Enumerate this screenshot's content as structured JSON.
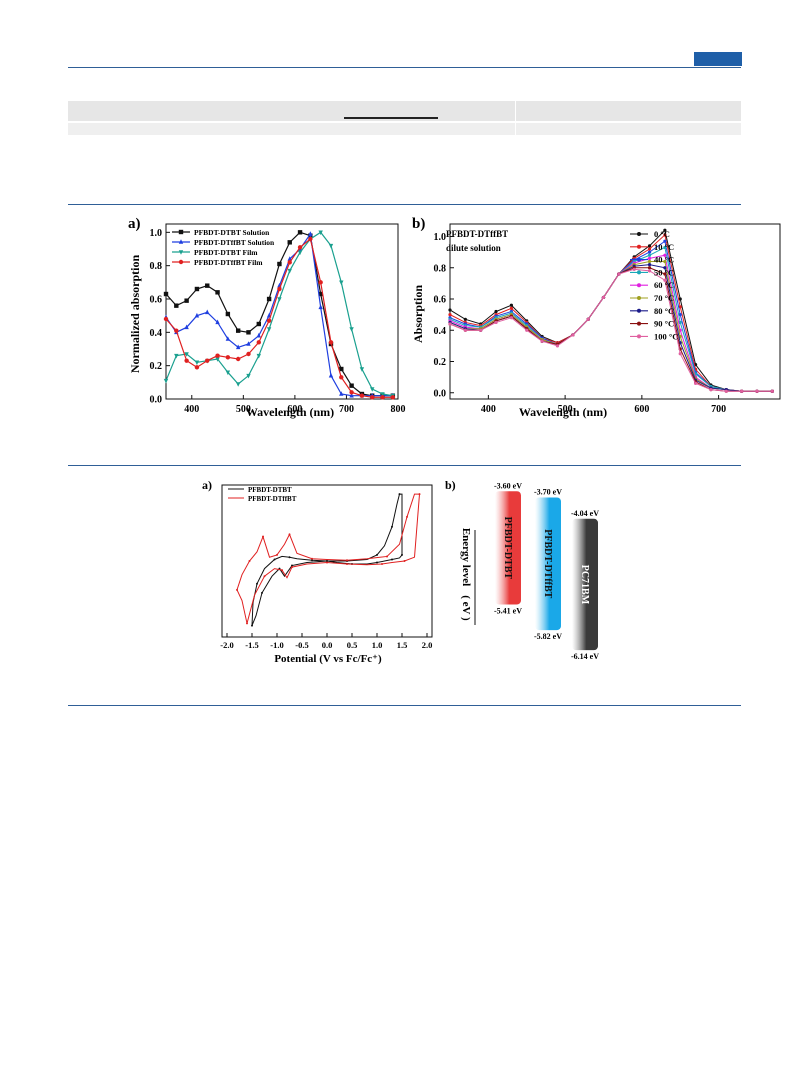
{
  "page": {
    "corner_tab_color": "#1f5fa8",
    "rule_color": "#2f5f97"
  },
  "figure_a": {
    "panel_a": {
      "letter": "a)",
      "chart_data": {
        "type": "line",
        "xlabel": "Wavelength (nm)",
        "ylabel": "Normalized absorption",
        "xlim": [
          350,
          800
        ],
        "ylim": [
          0,
          1.05
        ],
        "xticks": [
          400,
          500,
          600,
          700,
          800
        ],
        "yticks": [
          0.0,
          0.2,
          0.4,
          0.6,
          0.8,
          1.0
        ],
        "legend_position": "top-left",
        "series": [
          {
            "name": "PFBDT-DTBT  Solution",
            "color": "#111111",
            "marker": "square",
            "x": [
              350,
              370,
              390,
              410,
              430,
              450,
              470,
              490,
              510,
              530,
              550,
              570,
              590,
              610,
              630,
              650,
              670,
              690,
              710,
              730,
              750,
              770,
              790
            ],
            "y": [
              0.63,
              0.56,
              0.59,
              0.66,
              0.68,
              0.64,
              0.51,
              0.41,
              0.4,
              0.45,
              0.6,
              0.81,
              0.94,
              1.0,
              0.98,
              0.63,
              0.33,
              0.18,
              0.08,
              0.03,
              0.02,
              0.02,
              0.02
            ]
          },
          {
            "name": "PFBDT-DTffBT Solution",
            "color": "#1f3fe0",
            "marker": "triangle-up",
            "x": [
              350,
              370,
              390,
              410,
              430,
              450,
              470,
              490,
              510,
              530,
              550,
              570,
              590,
              610,
              630,
              650,
              670,
              690,
              710,
              730,
              750,
              770,
              790
            ],
            "y": [
              0.49,
              0.4,
              0.43,
              0.5,
              0.52,
              0.46,
              0.36,
              0.31,
              0.33,
              0.38,
              0.5,
              0.68,
              0.84,
              0.9,
              0.99,
              0.55,
              0.14,
              0.03,
              0.02,
              0.02,
              0.02,
              0.02,
              0.02
            ]
          },
          {
            "name": "PFBDT-DTBT Film",
            "color": "#1aa08f",
            "marker": "triangle-down",
            "x": [
              350,
              370,
              390,
              410,
              430,
              450,
              470,
              490,
              510,
              530,
              550,
              570,
              590,
              610,
              630,
              650,
              670,
              690,
              710,
              730,
              750,
              770,
              790
            ],
            "y": [
              0.11,
              0.26,
              0.27,
              0.22,
              0.23,
              0.24,
              0.16,
              0.09,
              0.14,
              0.26,
              0.42,
              0.6,
              0.77,
              0.88,
              0.96,
              1.0,
              0.92,
              0.7,
              0.42,
              0.18,
              0.06,
              0.03,
              0.02
            ]
          },
          {
            "name": "PFBDT-DTffBT Film",
            "color": "#e02020",
            "marker": "circle",
            "x": [
              350,
              370,
              390,
              410,
              430,
              450,
              470,
              490,
              510,
              530,
              550,
              570,
              590,
              610,
              630,
              650,
              670,
              690,
              710,
              730,
              750,
              770,
              790
            ],
            "y": [
              0.48,
              0.41,
              0.23,
              0.19,
              0.23,
              0.26,
              0.25,
              0.24,
              0.27,
              0.34,
              0.47,
              0.66,
              0.82,
              0.91,
              0.96,
              0.7,
              0.34,
              0.13,
              0.04,
              0.02,
              0.01,
              0.01,
              0.01
            ]
          }
        ]
      }
    },
    "panel_b": {
      "letter": "b)",
      "inset_title_line1": "PFBDT-DTffBT",
      "inset_title_line2": "dilute solution",
      "chart_data": {
        "type": "line",
        "xlabel": "Wavelength (nm)",
        "ylabel": "Absorption",
        "xlim": [
          350,
          780
        ],
        "ylim": [
          -0.04,
          1.08
        ],
        "xticks": [
          400,
          500,
          600,
          700
        ],
        "yticks": [
          0.0,
          0.2,
          0.4,
          0.6,
          0.8,
          1.0
        ],
        "legend_position": "top-right",
        "x": [
          350,
          370,
          390,
          410,
          430,
          450,
          470,
          490,
          510,
          530,
          550,
          570,
          590,
          610,
          630,
          650,
          670,
          690,
          710,
          730,
          750,
          770
        ],
        "series": [
          {
            "name": "0 °C",
            "color": "#111111",
            "y": [
              0.53,
              0.47,
              0.44,
              0.52,
              0.56,
              0.46,
              0.36,
              0.32,
              0.37,
              0.47,
              0.61,
              0.76,
              0.87,
              0.94,
              1.04,
              0.6,
              0.18,
              0.05,
              0.02,
              0.01,
              0.01,
              0.01
            ]
          },
          {
            "name": "10 °C",
            "color": "#e02020",
            "y": [
              0.5,
              0.45,
              0.43,
              0.5,
              0.54,
              0.45,
              0.35,
              0.32,
              0.37,
              0.47,
              0.61,
              0.76,
              0.86,
              0.92,
              1.01,
              0.55,
              0.15,
              0.04,
              0.02,
              0.01,
              0.01,
              0.01
            ]
          },
          {
            "name": "40 °C",
            "color": "#2040e0",
            "y": [
              0.48,
              0.44,
              0.42,
              0.49,
              0.52,
              0.44,
              0.35,
              0.31,
              0.37,
              0.47,
              0.61,
              0.76,
              0.85,
              0.9,
              0.97,
              0.5,
              0.13,
              0.04,
              0.02,
              0.01,
              0.01,
              0.01
            ]
          },
          {
            "name": "50 °C",
            "color": "#1aa8b8",
            "y": [
              0.47,
              0.43,
              0.42,
              0.48,
              0.51,
              0.43,
              0.34,
              0.31,
              0.37,
              0.47,
              0.61,
              0.76,
              0.84,
              0.88,
              0.93,
              0.45,
              0.12,
              0.04,
              0.02,
              0.01,
              0.01,
              0.01
            ]
          },
          {
            "name": "60 °C",
            "color": "#e020e0",
            "y": [
              0.46,
              0.42,
              0.41,
              0.47,
              0.5,
              0.42,
              0.34,
              0.31,
              0.37,
              0.47,
              0.61,
              0.76,
              0.83,
              0.86,
              0.88,
              0.4,
              0.1,
              0.03,
              0.02,
              0.01,
              0.01,
              0.01
            ]
          },
          {
            "name": "70 °C",
            "color": "#a0a020",
            "y": [
              0.45,
              0.41,
              0.41,
              0.47,
              0.5,
              0.42,
              0.34,
              0.31,
              0.37,
              0.47,
              0.61,
              0.76,
              0.82,
              0.84,
              0.84,
              0.36,
              0.09,
              0.03,
              0.02,
              0.01,
              0.01,
              0.01
            ]
          },
          {
            "name": "80 °C",
            "color": "#1a1a8a",
            "y": [
              0.45,
              0.41,
              0.4,
              0.46,
              0.49,
              0.41,
              0.33,
              0.31,
              0.37,
              0.47,
              0.61,
              0.76,
              0.81,
              0.82,
              0.8,
              0.32,
              0.08,
              0.03,
              0.02,
              0.01,
              0.01,
              0.01
            ]
          },
          {
            "name": "90 °C",
            "color": "#8a1010",
            "y": [
              0.44,
              0.4,
              0.4,
              0.46,
              0.49,
              0.41,
              0.33,
              0.31,
              0.37,
              0.47,
              0.61,
              0.76,
              0.8,
              0.8,
              0.76,
              0.28,
              0.07,
              0.02,
              0.01,
              0.01,
              0.01,
              0.01
            ]
          },
          {
            "name": "100 °C",
            "color": "#e060a0",
            "y": [
              0.44,
              0.4,
              0.4,
              0.45,
              0.48,
              0.4,
              0.33,
              0.3,
              0.37,
              0.47,
              0.61,
              0.76,
              0.79,
              0.78,
              0.72,
              0.25,
              0.06,
              0.02,
              0.01,
              0.01,
              0.01,
              0.01
            ]
          }
        ]
      }
    }
  },
  "figure_b": {
    "panel_a": {
      "letter": "a)",
      "chart_data": {
        "type": "line",
        "xlabel": "Potential (V vs Fc/Fc⁺)",
        "ylabel": "",
        "xlim": [
          -2.1,
          2.1
        ],
        "ylim": [
          -1.0,
          1.0
        ],
        "xticks": [
          -2.0,
          -1.5,
          -1.0,
          -0.5,
          0.0,
          0.5,
          1.0,
          1.5,
          2.0
        ],
        "xtick_labels": [
          "-2.0",
          "-1.5",
          "-1.0",
          "-0.5",
          "0.0",
          "0.5",
          "1.0",
          "1.5",
          "2.0"
        ],
        "legend_position": "top-left",
        "series": [
          {
            "name": "PFBDT-DTBT",
            "color": "#111111",
            "x": [
              0.0,
              -0.4,
              -0.7,
              -0.85,
              -0.95,
              -1.1,
              -1.3,
              -1.42,
              -1.5,
              -1.48,
              -1.4,
              -1.25,
              -1.05,
              -0.9,
              -0.75,
              -0.6,
              -0.3,
              0.0,
              0.4,
              0.8,
              1.0,
              1.15,
              1.3,
              1.4,
              1.45,
              1.5,
              1.5,
              1.45,
              1.3,
              1.15,
              1.0,
              0.8,
              0.5,
              0.2,
              0.0
            ],
            "y": [
              0.0,
              -0.02,
              -0.06,
              -0.2,
              -0.1,
              -0.2,
              -0.42,
              -0.72,
              -0.85,
              -0.55,
              -0.3,
              -0.1,
              0.02,
              0.06,
              0.05,
              0.03,
              0.01,
              0.0,
              0.0,
              0.02,
              0.08,
              0.2,
              0.45,
              0.75,
              0.88,
              0.88,
              0.08,
              0.04,
              0.02,
              0.0,
              -0.02,
              -0.04,
              -0.04,
              -0.02,
              0.0
            ]
          },
          {
            "name": "PFBDT-DTffBT",
            "color": "#e02020",
            "x": [
              0.0,
              -0.4,
              -0.7,
              -0.8,
              -0.9,
              -1.05,
              -1.25,
              -1.45,
              -1.6,
              -1.7,
              -1.8,
              -1.7,
              -1.55,
              -1.4,
              -1.28,
              -1.15,
              -1.0,
              -0.85,
              -0.75,
              -0.6,
              -0.3,
              0.0,
              0.4,
              0.8,
              1.2,
              1.45,
              1.6,
              1.75,
              1.85,
              1.75,
              1.55,
              1.3,
              1.1,
              0.8,
              0.4,
              0.0
            ],
            "y": [
              -0.02,
              -0.04,
              -0.08,
              -0.22,
              -0.12,
              -0.1,
              -0.2,
              -0.45,
              -0.82,
              -0.52,
              -0.38,
              -0.18,
              0.0,
              0.12,
              0.32,
              0.05,
              0.08,
              0.22,
              0.35,
              0.1,
              0.03,
              0.02,
              0.01,
              0.03,
              0.06,
              0.22,
              0.58,
              0.88,
              0.88,
              0.05,
              0.0,
              -0.02,
              -0.04,
              -0.05,
              -0.04,
              -0.02
            ]
          }
        ]
      }
    },
    "panel_b": {
      "letter": "b)",
      "axis_label_line1": "Energy level",
      "axis_label_line2": "( eV )",
      "chart_data": {
        "type": "bar",
        "categories": [
          "PFBDT-DTBT",
          "PFBDT-DTffBT",
          "PC71BM"
        ],
        "lumo_labels": [
          "-3.60 eV",
          "-3.70 eV",
          "-4.04 eV"
        ],
        "homo_labels": [
          "-5.41 eV",
          "-5.82 eV",
          "-6.14 eV"
        ],
        "lumo_eV": [
          -3.6,
          -3.7,
          -4.04
        ],
        "homo_eV": [
          -5.41,
          -5.82,
          -6.14
        ],
        "colors": [
          "#e83b3b",
          "#1aa8e8",
          "#3a3a3a"
        ]
      }
    }
  }
}
